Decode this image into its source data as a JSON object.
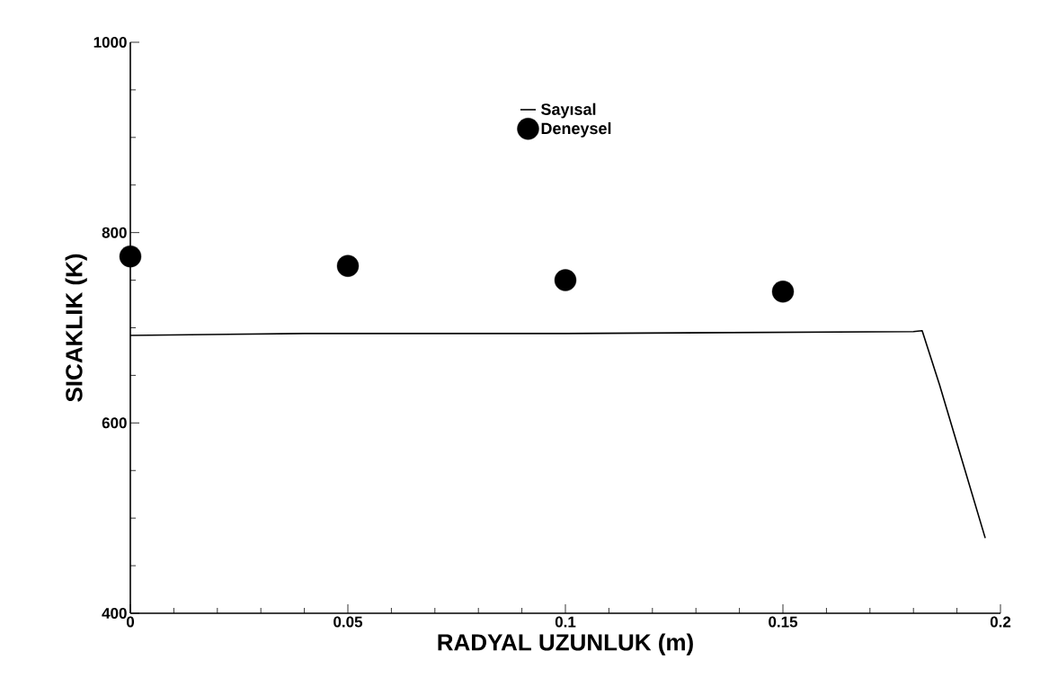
{
  "chart_data": {
    "type": "line",
    "xlabel": "RADYAL UZUNLUK (m)",
    "ylabel": "SICAKLIK (K)",
    "xlim": [
      0,
      0.2
    ],
    "ylim": [
      400,
      1000
    ],
    "xticks": [
      0,
      0.05,
      0.1,
      0.15,
      0.2
    ],
    "yticks": [
      400,
      600,
      800,
      1000
    ],
    "legend": "top",
    "grid": false,
    "series": [
      {
        "name": "Sayısal",
        "color": "#000000",
        "line_style": "solid",
        "marker": "none",
        "x": [
          0,
          0.04,
          0.1,
          0.18,
          0.182,
          0.186,
          0.1965
        ],
        "values": [
          692,
          694,
          694,
          696,
          697,
          640,
          479
        ]
      },
      {
        "name": "Deneysel",
        "type": "scatter",
        "color": "#000000",
        "marker": "circle",
        "x": [
          0,
          0.05,
          0.1,
          0.15
        ],
        "values": [
          775,
          765,
          750,
          738
        ]
      }
    ]
  }
}
